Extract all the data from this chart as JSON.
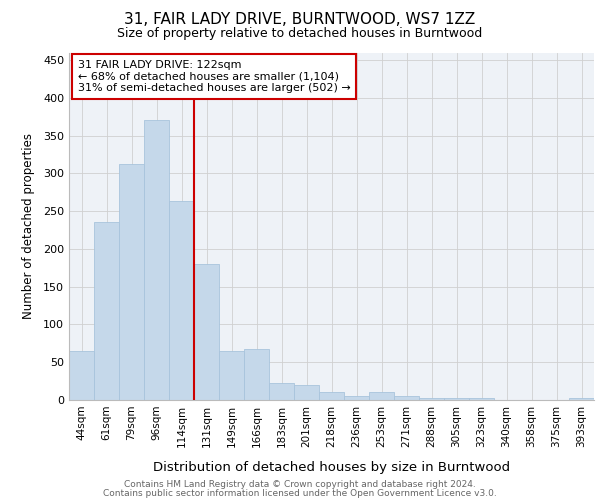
{
  "title1": "31, FAIR LADY DRIVE, BURNTWOOD, WS7 1ZZ",
  "title2": "Size of property relative to detached houses in Burntwood",
  "xlabel": "Distribution of detached houses by size in Burntwood",
  "ylabel": "Number of detached properties",
  "bin_labels": [
    "44sqm",
    "61sqm",
    "79sqm",
    "96sqm",
    "114sqm",
    "131sqm",
    "149sqm",
    "166sqm",
    "183sqm",
    "201sqm",
    "218sqm",
    "236sqm",
    "253sqm",
    "271sqm",
    "288sqm",
    "305sqm",
    "323sqm",
    "340sqm",
    "358sqm",
    "375sqm",
    "393sqm"
  ],
  "bin_values": [
    65,
    235,
    313,
    370,
    263,
    180,
    65,
    68,
    22,
    20,
    10,
    5,
    10,
    5,
    3,
    2,
    2,
    0,
    0,
    0,
    3
  ],
  "bar_color": "#c5d8ea",
  "bar_edge_color": "#a8c4dc",
  "bar_width": 1.0,
  "red_line_x": 4.5,
  "red_line_color": "#cc0000",
  "annotation_text": "31 FAIR LADY DRIVE: 122sqm\n← 68% of detached houses are smaller (1,104)\n31% of semi-detached houses are larger (502) →",
  "annotation_box_color": "#ffffff",
  "annotation_box_edge_color": "#cc0000",
  "footnote1": "Contains HM Land Registry data © Crown copyright and database right 2024.",
  "footnote2": "Contains public sector information licensed under the Open Government Licence v3.0.",
  "ylim": [
    0,
    460
  ],
  "yticks": [
    0,
    50,
    100,
    150,
    200,
    250,
    300,
    350,
    400,
    450
  ],
  "grid_color": "#d0d0d0",
  "background_color": "#ffffff",
  "plot_bg_color": "#eef2f7"
}
